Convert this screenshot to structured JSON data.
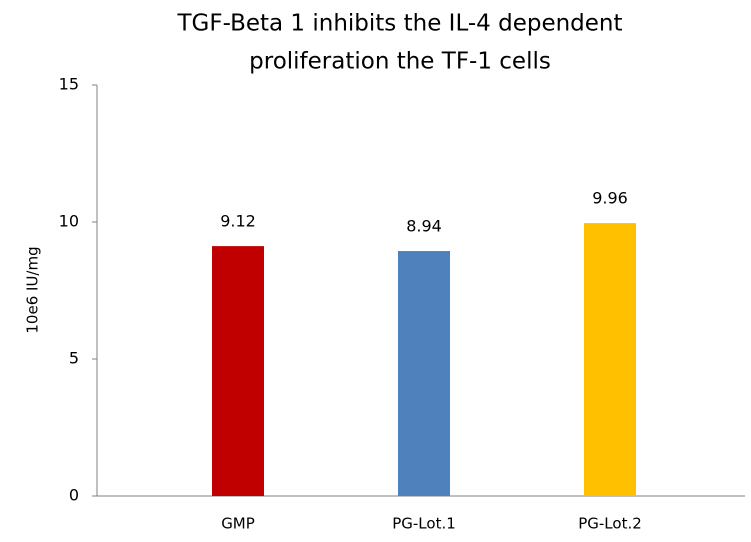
{
  "chart_data": {
    "type": "bar",
    "title": [
      "TGF-Beta 1  inhibits the IL-4 dependent",
      "proliferation the TF-1 cells"
    ],
    "y_label": "10e6 IU/mg",
    "categories": [
      "GMP",
      "PG-Lot.1",
      "PG-Lot.2"
    ],
    "values": [
      9.12,
      8.94,
      9.96
    ],
    "colors": [
      "#c00000",
      "#4f81bd",
      "#ffc000"
    ],
    "ylim": [
      0,
      15
    ],
    "yticks": [
      0,
      5,
      10,
      15
    ],
    "grid": false
  }
}
